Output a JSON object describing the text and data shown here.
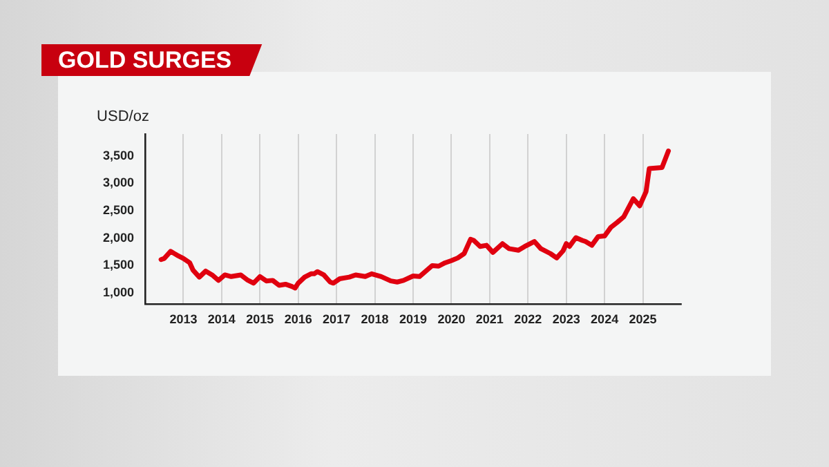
{
  "chart_data": {
    "type": "line",
    "title": "GOLD SURGES",
    "ylabel": "USD/oz",
    "x": [
      "2012-06",
      "2012-07",
      "2012-09",
      "2012-11",
      "2013-01",
      "2013-03",
      "2013-04",
      "2013-06",
      "2013-08",
      "2013-10",
      "2013-12",
      "2014-02",
      "2014-04",
      "2014-07",
      "2014-09",
      "2014-11",
      "2015-01",
      "2015-03",
      "2015-05",
      "2015-07",
      "2015-09",
      "2015-11",
      "2015-12",
      "2016-01",
      "2016-03",
      "2016-05",
      "2016-06",
      "2016-07",
      "2016-09",
      "2016-11",
      "2016-12",
      "2017-02",
      "2017-05",
      "2017-07",
      "2017-10",
      "2017-12",
      "2018-03",
      "2018-06",
      "2018-08",
      "2018-10",
      "2019-01",
      "2019-03",
      "2019-05",
      "2019-07",
      "2019-09",
      "2019-11",
      "2020-01",
      "2020-03",
      "2020-05",
      "2020-07",
      "2020-08",
      "2020-10",
      "2020-12",
      "2021-02",
      "2021-05",
      "2021-07",
      "2021-10",
      "2021-12",
      "2022-03",
      "2022-05",
      "2022-08",
      "2022-10",
      "2022-12",
      "2023-01",
      "2023-02",
      "2023-04",
      "2023-06",
      "2023-07",
      "2023-09",
      "2023-11",
      "2024-01",
      "2024-03",
      "2024-05",
      "2024-07",
      "2024-10",
      "2024-12",
      "2025-02",
      "2025-03",
      "2025-07",
      "2025-09"
    ],
    "series": [
      {
        "color": "#e0000f",
        "values": [
          1610,
          1630,
          1760,
          1690,
          1630,
          1550,
          1420,
          1290,
          1400,
          1330,
          1230,
          1330,
          1300,
          1330,
          1240,
          1180,
          1300,
          1220,
          1230,
          1140,
          1160,
          1120,
          1090,
          1180,
          1290,
          1350,
          1350,
          1390,
          1330,
          1200,
          1180,
          1260,
          1290,
          1330,
          1300,
          1350,
          1300,
          1220,
          1200,
          1230,
          1310,
          1300,
          1400,
          1500,
          1490,
          1550,
          1590,
          1640,
          1720,
          1980,
          1960,
          1850,
          1870,
          1740,
          1900,
          1810,
          1780,
          1850,
          1940,
          1810,
          1720,
          1640,
          1770,
          1900,
          1850,
          2010,
          1960,
          1940,
          1870,
          2030,
          2040,
          2200,
          2290,
          2390,
          2720,
          2590,
          2850,
          3270,
          3290,
          3590
        ]
      }
    ],
    "xlim": [
      "2012",
      "2026"
    ],
    "xticks": [
      "2013",
      "2014",
      "2015",
      "2016",
      "2017",
      "2018",
      "2019",
      "2020",
      "2021",
      "2022",
      "2023",
      "2024",
      "2025"
    ],
    "ylim": [
      800,
      3900
    ],
    "yticks": [
      {
        "value": 1000,
        "label": "1,000"
      },
      {
        "value": 1500,
        "label": "1,500"
      },
      {
        "value": 2000,
        "label": "2,000"
      },
      {
        "value": 2500,
        "label": "2,500"
      },
      {
        "value": 3000,
        "label": "3,000"
      },
      {
        "value": 3500,
        "label": "3,500"
      }
    ],
    "grid": "x",
    "legend": false,
    "marker": "none",
    "line_style": "solid"
  }
}
